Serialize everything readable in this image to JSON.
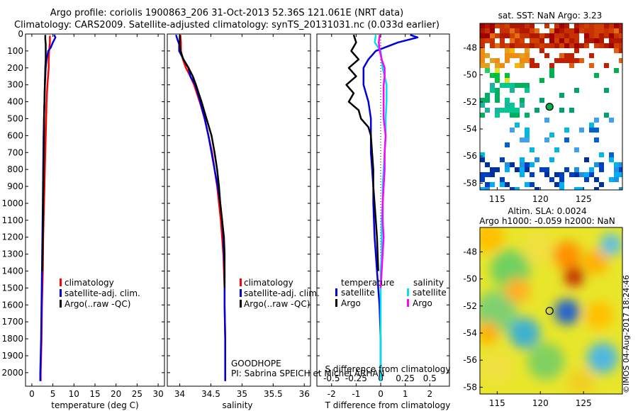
{
  "header": {
    "line1": "Argo profile: coriolis 1900863_206 31-Oct-2013 52.36S 121.061E (NRT data)",
    "line2": "Climatology: CARS2009. Satellite-adjusted climatology: synTS_20131031.nc (0.033d earlier)"
  },
  "credit": "©IMOS 04-Aug-2017 18:24:46",
  "colors": {
    "climatology": "#ff0000",
    "satellite": "#0000dd",
    "argo": "#000000",
    "salinity_sat": "#00e0f0",
    "salinity_argo": "#ff00ff"
  },
  "chart_data": [
    {
      "id": "temperature",
      "type": "line",
      "xlabel": "temperature (deg C)",
      "ylabel": "",
      "xlim": [
        -1.5,
        31.5
      ],
      "ylim": [
        2080,
        0
      ],
      "xticks": [
        "0",
        "5",
        "10",
        "15",
        "20",
        "25",
        "30"
      ],
      "xtick_values": [
        0,
        5,
        10,
        15,
        20,
        25,
        30
      ],
      "yticks": [
        0,
        100,
        200,
        300,
        400,
        500,
        600,
        700,
        800,
        900,
        1000,
        1100,
        1200,
        1300,
        1400,
        1500,
        1600,
        1700,
        1800,
        1900,
        2000
      ],
      "legend": [
        "climatology",
        "satellite-adj. clim.",
        "Argo(..raw -QC)"
      ],
      "series": [
        {
          "name": "climatology",
          "depth": [
            10,
            50,
            100,
            150,
            200,
            300,
            400,
            500,
            600,
            800,
            1000,
            1200,
            1400,
            1600,
            1800,
            2000,
            2050
          ],
          "values": [
            4.3,
            4.3,
            4.1,
            4.0,
            4.0,
            3.7,
            3.5,
            3.4,
            3.3,
            3.1,
            2.9,
            2.7,
            2.6,
            2.4,
            2.3,
            2.1,
            2.1
          ]
        },
        {
          "name": "satellite-adj. clim.",
          "depth": [
            5,
            20,
            50,
            80,
            100,
            150,
            200,
            300,
            400,
            500,
            600,
            800,
            1000,
            1200,
            1400,
            1600,
            1800,
            2000,
            2050
          ],
          "values": [
            5.3,
            5.6,
            5.0,
            4.5,
            3.9,
            3.5,
            3.3,
            3.1,
            3.0,
            2.9,
            2.8,
            2.7,
            2.6,
            2.5,
            2.4,
            2.3,
            2.2,
            2.0,
            2.0
          ]
        },
        {
          "name": "Argo(..raw -QC)",
          "depth": [
            5,
            30,
            60,
            100,
            150,
            200,
            300,
            400,
            500,
            600,
            800,
            1000,
            1200,
            1400
          ],
          "values": [
            3.2,
            3.2,
            3.3,
            3.3,
            3.3,
            3.2,
            3.1,
            3.0,
            2.9,
            2.9,
            2.8,
            2.7,
            2.6,
            2.5
          ]
        }
      ]
    },
    {
      "id": "salinity",
      "type": "line",
      "xlabel": "salinity",
      "ylabel": "",
      "xlim": [
        33.8,
        36.1
      ],
      "ylim": [
        2080,
        0
      ],
      "xticks": [
        "34",
        "34.5",
        "35",
        "35.5",
        "36"
      ],
      "xtick_values": [
        34,
        34.5,
        35,
        35.5,
        36
      ],
      "legend": [
        "climatology",
        "satellite-adj. clim.",
        "Argo(..raw -QC)"
      ],
      "annotation": [
        "GOODHOPE",
        "PI: Sabrina SPEICH et Michel ARHAN"
      ],
      "series": [
        {
          "name": "climatology",
          "depth": [
            5,
            50,
            100,
            150,
            200,
            250,
            300,
            400,
            500,
            600,
            700,
            800,
            900,
            1000,
            1100,
            1200,
            1300,
            1400,
            1500,
            1600,
            1800,
            2000,
            2050
          ],
          "values": [
            34.01,
            34.02,
            34.02,
            34.05,
            34.1,
            34.17,
            34.23,
            34.32,
            34.4,
            34.46,
            34.52,
            34.56,
            34.6,
            34.63,
            34.66,
            34.68,
            34.7,
            34.71,
            34.72,
            34.72,
            34.73,
            34.73,
            34.73
          ]
        },
        {
          "name": "satellite-adj. clim.",
          "depth": [
            5,
            30,
            60,
            100,
            150,
            200,
            250,
            300,
            400,
            500,
            600,
            700,
            800,
            900,
            1000,
            1100,
            1200,
            1300,
            1400,
            1500,
            1600,
            1800,
            2000,
            2050
          ],
          "values": [
            33.94,
            33.96,
            33.99,
            33.99,
            34.06,
            34.14,
            34.17,
            34.25,
            34.33,
            34.4,
            34.46,
            34.51,
            34.56,
            34.61,
            34.65,
            34.68,
            34.7,
            34.71,
            34.72,
            34.72,
            34.72,
            34.73,
            34.73,
            34.73
          ]
        },
        {
          "name": "Argo(..raw -QC)",
          "depth": [
            5,
            60,
            100,
            150,
            200,
            250,
            300,
            400,
            500,
            600,
            700,
            800,
            900,
            1000,
            1100,
            1200,
            1300,
            1400,
            1500
          ],
          "values": [
            34.0,
            34.0,
            34.01,
            34.06,
            34.14,
            34.21,
            34.26,
            34.35,
            34.43,
            34.51,
            34.56,
            34.6,
            34.63,
            34.65,
            34.68,
            34.71,
            34.72,
            34.72,
            34.72
          ]
        }
      ]
    },
    {
      "id": "difference",
      "type": "line",
      "xlabel": "T difference from climatology",
      "ylabel": "",
      "title": "S difference from climatology",
      "xlim": [
        -2.6,
        2.8
      ],
      "ylim": [
        2080,
        0
      ],
      "xticks_bottom": [
        "-2",
        "-1",
        "0",
        "1",
        "2"
      ],
      "xtick_values_bottom": [
        -2,
        -1,
        0,
        1,
        2
      ],
      "xticks_top": [
        "-0.5",
        "-0.25",
        "0",
        "0.25",
        "0.5"
      ],
      "xtick_values_top": [
        -0.5,
        -0.25,
        0,
        0.25,
        0.5
      ],
      "legend_titles": [
        "temperature",
        "salinity"
      ],
      "legend_temperature": [
        "satellite",
        "Argo"
      ],
      "legend_salinity": [
        "satellite",
        "Argo"
      ],
      "series": [
        {
          "name": "temperature satellite",
          "depth": [
            5,
            20,
            50,
            100,
            150,
            200,
            300,
            400,
            500,
            600,
            700,
            800,
            900,
            1000,
            1200,
            1400,
            1600,
            1800,
            2000,
            2050
          ],
          "values": [
            1.2,
            1.5,
            0.7,
            -0.2,
            -0.5,
            -0.7,
            -0.7,
            -0.5,
            -0.4,
            -0.4,
            -0.4,
            -0.35,
            -0.3,
            -0.3,
            -0.25,
            -0.15,
            -0.05,
            0,
            0,
            0
          ]
        },
        {
          "name": "temperature Argo",
          "depth": [
            5,
            50,
            100,
            150,
            200,
            250,
            300,
            350,
            400,
            450,
            500,
            550,
            600,
            700,
            800,
            900,
            1000,
            1200,
            1400
          ],
          "values": [
            -1.1,
            -1.0,
            -1.2,
            -0.9,
            -1.3,
            -1.0,
            -1.4,
            -1.1,
            -1.3,
            -0.9,
            -0.8,
            -0.5,
            -0.4,
            -0.35,
            -0.3,
            -0.3,
            -0.25,
            -0.15,
            -0.1
          ]
        },
        {
          "name": "salinity satellite",
          "depth": [
            5,
            50,
            100,
            200,
            300,
            400,
            500,
            600,
            700,
            800,
            900,
            1000,
            1100,
            1200,
            1300,
            1400,
            1500,
            1600,
            1800,
            2000,
            2050
          ],
          "values": [
            -0.05,
            -0.06,
            0,
            0.02,
            0.06,
            0.06,
            0.05,
            0.05,
            0.04,
            0.03,
            0.02,
            0.02,
            0.01,
            0.01,
            0.01,
            0.0,
            0.0,
            0.0,
            0.0,
            0.0,
            0.0
          ]
        },
        {
          "name": "salinity Argo",
          "depth": [
            5,
            50,
            100,
            150,
            200,
            250,
            300,
            400,
            500,
            600,
            700,
            800,
            900,
            1000,
            1100,
            1200,
            1300,
            1400,
            1500
          ],
          "values": [
            -0.01,
            -0.02,
            -0.01,
            0.01,
            0.04,
            0.04,
            0.03,
            0.03,
            0.03,
            0.05,
            0.04,
            0.04,
            0.03,
            0.02,
            0.02,
            0.03,
            0.02,
            0.01,
            0.0
          ]
        }
      ]
    },
    {
      "id": "sst_map",
      "type": "heatmap",
      "title": "sat. SST: NaN Argo: 3.23",
      "xticks": [
        "115",
        "120",
        "125"
      ],
      "xtick_values": [
        115,
        120,
        125
      ],
      "yticks": [
        "-48",
        "-50",
        "-52",
        "-54",
        "-56",
        "-58"
      ],
      "ytick_values": [
        -48,
        -50,
        -52,
        -54,
        -56,
        -58
      ],
      "xlim": [
        113,
        129.5
      ],
      "ylim": [
        -58.5,
        -46.2
      ],
      "marker": {
        "lon": 121.061,
        "lat": -52.36
      }
    },
    {
      "id": "sla_map",
      "type": "heatmap",
      "title_lines": [
        "Altim. SLA: 0.0024",
        "Argo h1000: -0.059 h2000: NaN"
      ],
      "xticks": [
        "115",
        "120",
        "125"
      ],
      "xtick_values": [
        115,
        120,
        125
      ],
      "yticks": [
        "-48",
        "-50",
        "-52",
        "-54",
        "-56",
        "-58"
      ],
      "ytick_values": [
        -48,
        -50,
        -52,
        -54,
        -56,
        -58
      ],
      "xlim": [
        113,
        129.5
      ],
      "ylim": [
        -58.5,
        -46.2
      ],
      "marker": {
        "lon": 121.061,
        "lat": -52.36
      }
    }
  ]
}
